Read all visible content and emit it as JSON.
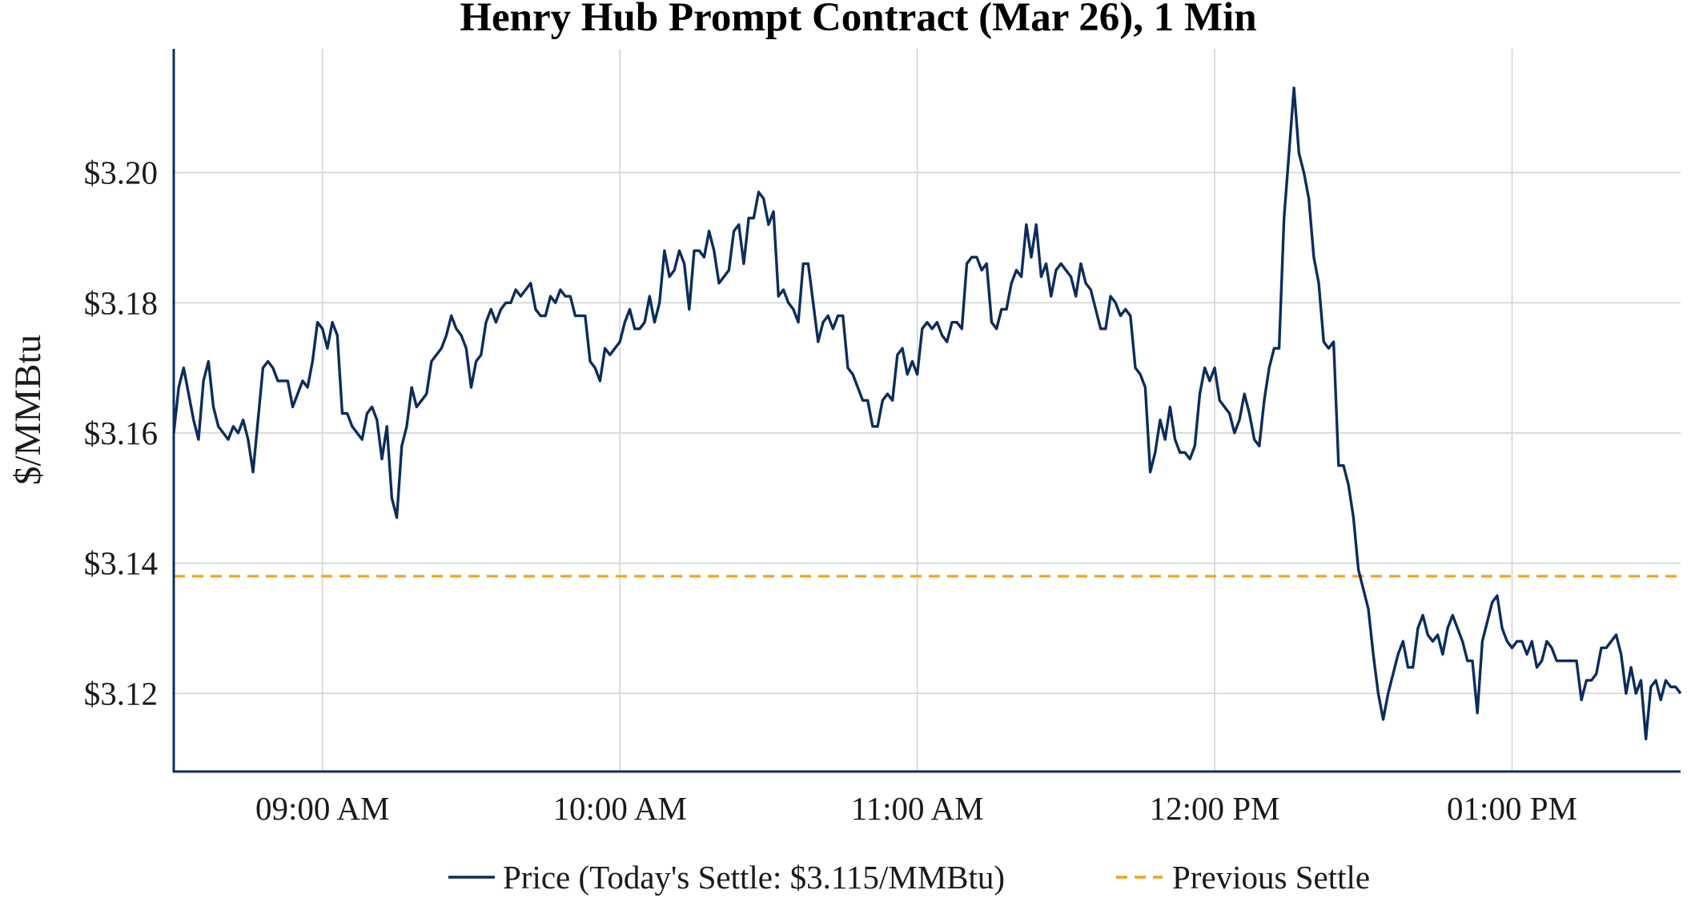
{
  "chart_data": {
    "type": "line",
    "title": "Henry Hub Prompt Contract (Mar 26), 1 Min",
    "ylabel": "$/MMBtu",
    "xlabel": "",
    "x_unit": "minutes after 08:30 AM",
    "xlim": [
      0,
      304
    ],
    "ylim": [
      3.108,
      3.219
    ],
    "x_ticks": [
      {
        "x": 30,
        "label": "09:00 AM"
      },
      {
        "x": 90,
        "label": "10:00 AM"
      },
      {
        "x": 150,
        "label": "11:00 AM"
      },
      {
        "x": 210,
        "label": "12:00 PM"
      },
      {
        "x": 270,
        "label": "01:00 PM"
      }
    ],
    "y_ticks": [
      {
        "y": 3.12,
        "label": "$3.12"
      },
      {
        "y": 3.14,
        "label": "$3.14"
      },
      {
        "y": 3.16,
        "label": "$3.16"
      },
      {
        "y": 3.18,
        "label": "$3.18"
      },
      {
        "y": 3.2,
        "label": "$3.20"
      }
    ],
    "grid": true,
    "legend_position": "bottom-center",
    "series": [
      {
        "name": "Price (Today's Settle: $3.115/MMBtu)",
        "color": "#0b2d5b",
        "style": "solid",
        "points": [
          [
            0,
            3.16
          ],
          [
            1,
            3.167
          ],
          [
            2,
            3.17
          ],
          [
            3,
            3.166
          ],
          [
            4,
            3.162
          ],
          [
            5,
            3.159
          ],
          [
            6,
            3.168
          ],
          [
            7,
            3.171
          ],
          [
            8,
            3.164
          ],
          [
            9,
            3.161
          ],
          [
            10,
            3.16
          ],
          [
            11,
            3.159
          ],
          [
            12,
            3.161
          ],
          [
            13,
            3.16
          ],
          [
            14,
            3.162
          ],
          [
            15,
            3.159
          ],
          [
            16,
            3.154
          ],
          [
            17,
            3.162
          ],
          [
            18,
            3.17
          ],
          [
            19,
            3.171
          ],
          [
            20,
            3.17
          ],
          [
            21,
            3.168
          ],
          [
            22,
            3.168
          ],
          [
            23,
            3.168
          ],
          [
            24,
            3.164
          ],
          [
            25,
            3.166
          ],
          [
            26,
            3.168
          ],
          [
            27,
            3.167
          ],
          [
            28,
            3.171
          ],
          [
            29,
            3.177
          ],
          [
            30,
            3.176
          ],
          [
            31,
            3.173
          ],
          [
            32,
            3.177
          ],
          [
            33,
            3.175
          ],
          [
            34,
            3.163
          ],
          [
            35,
            3.163
          ],
          [
            36,
            3.161
          ],
          [
            37,
            3.16
          ],
          [
            38,
            3.159
          ],
          [
            39,
            3.163
          ],
          [
            40,
            3.164
          ],
          [
            41,
            3.162
          ],
          [
            42,
            3.156
          ],
          [
            43,
            3.161
          ],
          [
            44,
            3.15
          ],
          [
            45,
            3.147
          ],
          [
            46,
            3.158
          ],
          [
            47,
            3.161
          ],
          [
            48,
            3.167
          ],
          [
            49,
            3.164
          ],
          [
            50,
            3.165
          ],
          [
            51,
            3.166
          ],
          [
            52,
            3.171
          ],
          [
            53,
            3.172
          ],
          [
            54,
            3.173
          ],
          [
            55,
            3.175
          ],
          [
            56,
            3.178
          ],
          [
            57,
            3.176
          ],
          [
            58,
            3.175
          ],
          [
            59,
            3.173
          ],
          [
            60,
            3.167
          ],
          [
            61,
            3.171
          ],
          [
            62,
            3.172
          ],
          [
            63,
            3.177
          ],
          [
            64,
            3.179
          ],
          [
            65,
            3.177
          ],
          [
            66,
            3.179
          ],
          [
            67,
            3.18
          ],
          [
            68,
            3.18
          ],
          [
            69,
            3.182
          ],
          [
            70,
            3.181
          ],
          [
            71,
            3.182
          ],
          [
            72,
            3.183
          ],
          [
            73,
            3.179
          ],
          [
            74,
            3.178
          ],
          [
            75,
            3.178
          ],
          [
            76,
            3.181
          ],
          [
            77,
            3.18
          ],
          [
            78,
            3.182
          ],
          [
            79,
            3.181
          ],
          [
            80,
            3.181
          ],
          [
            81,
            3.178
          ],
          [
            82,
            3.178
          ],
          [
            83,
            3.178
          ],
          [
            84,
            3.171
          ],
          [
            85,
            3.17
          ],
          [
            86,
            3.168
          ],
          [
            87,
            3.173
          ],
          [
            88,
            3.172
          ],
          [
            89,
            3.173
          ],
          [
            90,
            3.174
          ],
          [
            91,
            3.177
          ],
          [
            92,
            3.179
          ],
          [
            93,
            3.176
          ],
          [
            94,
            3.176
          ],
          [
            95,
            3.177
          ],
          [
            96,
            3.181
          ],
          [
            97,
            3.177
          ],
          [
            98,
            3.18
          ],
          [
            99,
            3.188
          ],
          [
            100,
            3.184
          ],
          [
            101,
            3.185
          ],
          [
            102,
            3.188
          ],
          [
            103,
            3.186
          ],
          [
            104,
            3.179
          ],
          [
            105,
            3.188
          ],
          [
            106,
            3.188
          ],
          [
            107,
            3.187
          ],
          [
            108,
            3.191
          ],
          [
            109,
            3.188
          ],
          [
            110,
            3.183
          ],
          [
            111,
            3.184
          ],
          [
            112,
            3.185
          ],
          [
            113,
            3.191
          ],
          [
            114,
            3.192
          ],
          [
            115,
            3.186
          ],
          [
            116,
            3.193
          ],
          [
            117,
            3.193
          ],
          [
            118,
            3.197
          ],
          [
            119,
            3.196
          ],
          [
            120,
            3.192
          ],
          [
            121,
            3.194
          ],
          [
            122,
            3.181
          ],
          [
            123,
            3.182
          ],
          [
            124,
            3.18
          ],
          [
            125,
            3.179
          ],
          [
            126,
            3.177
          ],
          [
            127,
            3.186
          ],
          [
            128,
            3.186
          ],
          [
            129,
            3.18
          ],
          [
            130,
            3.174
          ],
          [
            131,
            3.177
          ],
          [
            132,
            3.178
          ],
          [
            133,
            3.176
          ],
          [
            134,
            3.178
          ],
          [
            135,
            3.178
          ],
          [
            136,
            3.17
          ],
          [
            137,
            3.169
          ],
          [
            138,
            3.167
          ],
          [
            139,
            3.165
          ],
          [
            140,
            3.165
          ],
          [
            141,
            3.161
          ],
          [
            142,
            3.161
          ],
          [
            143,
            3.165
          ],
          [
            144,
            3.166
          ],
          [
            145,
            3.165
          ],
          [
            146,
            3.172
          ],
          [
            147,
            3.173
          ],
          [
            148,
            3.169
          ],
          [
            149,
            3.171
          ],
          [
            150,
            3.169
          ],
          [
            151,
            3.176
          ],
          [
            152,
            3.177
          ],
          [
            153,
            3.176
          ],
          [
            154,
            3.177
          ],
          [
            155,
            3.175
          ],
          [
            156,
            3.174
          ],
          [
            157,
            3.177
          ],
          [
            158,
            3.177
          ],
          [
            159,
            3.176
          ],
          [
            160,
            3.186
          ],
          [
            161,
            3.187
          ],
          [
            162,
            3.187
          ],
          [
            163,
            3.185
          ],
          [
            164,
            3.186
          ],
          [
            165,
            3.177
          ],
          [
            166,
            3.176
          ],
          [
            167,
            3.179
          ],
          [
            168,
            3.179
          ],
          [
            169,
            3.183
          ],
          [
            170,
            3.185
          ],
          [
            171,
            3.184
          ],
          [
            172,
            3.192
          ],
          [
            173,
            3.187
          ],
          [
            174,
            3.192
          ],
          [
            175,
            3.184
          ],
          [
            176,
            3.186
          ],
          [
            177,
            3.181
          ],
          [
            178,
            3.185
          ],
          [
            179,
            3.186
          ],
          [
            180,
            3.185
          ],
          [
            181,
            3.184
          ],
          [
            182,
            3.181
          ],
          [
            183,
            3.186
          ],
          [
            184,
            3.183
          ],
          [
            185,
            3.182
          ],
          [
            186,
            3.179
          ],
          [
            187,
            3.176
          ],
          [
            188,
            3.176
          ],
          [
            189,
            3.181
          ],
          [
            190,
            3.18
          ],
          [
            191,
            3.178
          ],
          [
            192,
            3.179
          ],
          [
            193,
            3.178
          ],
          [
            194,
            3.17
          ],
          [
            195,
            3.169
          ],
          [
            196,
            3.167
          ],
          [
            197,
            3.154
          ],
          [
            198,
            3.157
          ],
          [
            199,
            3.162
          ],
          [
            200,
            3.159
          ],
          [
            201,
            3.164
          ],
          [
            202,
            3.159
          ],
          [
            203,
            3.157
          ],
          [
            204,
            3.157
          ],
          [
            205,
            3.156
          ],
          [
            206,
            3.158
          ],
          [
            207,
            3.166
          ],
          [
            208,
            3.17
          ],
          [
            209,
            3.168
          ],
          [
            210,
            3.17
          ],
          [
            211,
            3.165
          ],
          [
            212,
            3.164
          ],
          [
            213,
            3.163
          ],
          [
            214,
            3.16
          ],
          [
            215,
            3.162
          ],
          [
            216,
            3.166
          ],
          [
            217,
            3.163
          ],
          [
            218,
            3.159
          ],
          [
            219,
            3.158
          ],
          [
            220,
            3.165
          ],
          [
            221,
            3.17
          ],
          [
            222,
            3.173
          ],
          [
            223,
            3.173
          ],
          [
            224,
            3.193
          ],
          [
            225,
            3.203
          ],
          [
            226,
            3.213
          ],
          [
            227,
            3.203
          ],
          [
            228,
            3.2
          ],
          [
            229,
            3.196
          ],
          [
            230,
            3.187
          ],
          [
            231,
            3.183
          ],
          [
            232,
            3.174
          ],
          [
            233,
            3.173
          ],
          [
            234,
            3.174
          ],
          [
            235,
            3.155
          ],
          [
            236,
            3.155
          ],
          [
            237,
            3.152
          ],
          [
            238,
            3.147
          ],
          [
            239,
            3.139
          ],
          [
            240,
            3.136
          ],
          [
            241,
            3.133
          ],
          [
            242,
            3.126
          ],
          [
            243,
            3.12
          ],
          [
            244,
            3.116
          ],
          [
            245,
            3.12
          ],
          [
            246,
            3.123
          ],
          [
            247,
            3.126
          ],
          [
            248,
            3.128
          ],
          [
            249,
            3.124
          ],
          [
            250,
            3.124
          ],
          [
            251,
            3.13
          ],
          [
            252,
            3.132
          ],
          [
            253,
            3.129
          ],
          [
            254,
            3.128
          ],
          [
            255,
            3.129
          ],
          [
            256,
            3.126
          ],
          [
            257,
            3.13
          ],
          [
            258,
            3.132
          ],
          [
            259,
            3.13
          ],
          [
            260,
            3.128
          ],
          [
            261,
            3.125
          ],
          [
            262,
            3.125
          ],
          [
            263,
            3.117
          ],
          [
            264,
            3.128
          ],
          [
            265,
            3.131
          ],
          [
            266,
            3.134
          ],
          [
            267,
            3.135
          ],
          [
            268,
            3.13
          ],
          [
            269,
            3.128
          ],
          [
            270,
            3.127
          ],
          [
            271,
            3.128
          ],
          [
            272,
            3.128
          ],
          [
            273,
            3.126
          ],
          [
            274,
            3.128
          ],
          [
            275,
            3.124
          ],
          [
            276,
            3.125
          ],
          [
            277,
            3.128
          ],
          [
            278,
            3.127
          ],
          [
            279,
            3.125
          ],
          [
            280,
            3.125
          ],
          [
            281,
            3.125
          ],
          [
            282,
            3.125
          ],
          [
            283,
            3.125
          ],
          [
            284,
            3.119
          ],
          [
            285,
            3.122
          ],
          [
            286,
            3.122
          ],
          [
            287,
            3.123
          ],
          [
            288,
            3.127
          ],
          [
            289,
            3.127
          ],
          [
            290,
            3.128
          ],
          [
            291,
            3.129
          ],
          [
            292,
            3.126
          ],
          [
            293,
            3.12
          ],
          [
            294,
            3.124
          ],
          [
            295,
            3.12
          ],
          [
            296,
            3.122
          ],
          [
            297,
            3.113
          ],
          [
            298,
            3.121
          ],
          [
            299,
            3.122
          ],
          [
            300,
            3.119
          ],
          [
            301,
            3.122
          ],
          [
            302,
            3.121
          ],
          [
            303,
            3.121
          ],
          [
            304,
            3.12
          ]
        ]
      },
      {
        "name": "Previous Settle",
        "color": "#f5a01a",
        "style": "dashed",
        "value": 3.138
      }
    ]
  }
}
